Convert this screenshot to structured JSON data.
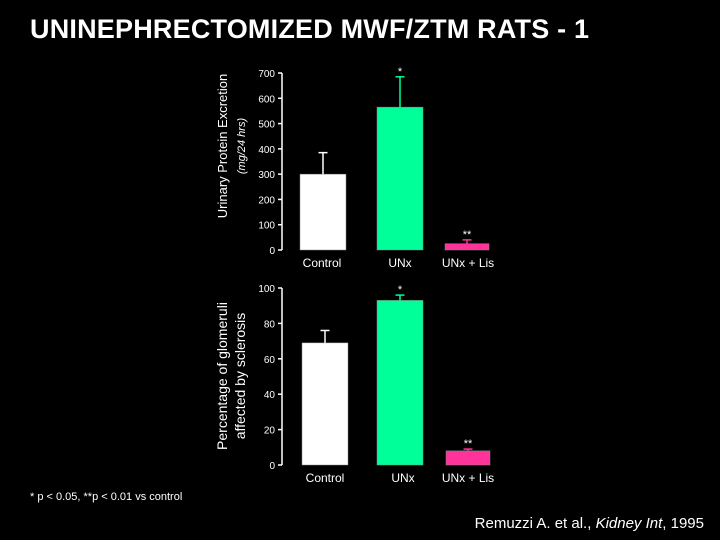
{
  "title": "UNINEPHRECTOMIZED MWF/ZTM RATS - 1",
  "footnote": "* p < 0.05, **p < 0.01 vs control",
  "citation": {
    "authors": "Remuzzi A. et al., ",
    "journal": "Kidney Int",
    "year": ", 1995"
  },
  "colors": {
    "background": "#000000",
    "control": "#ffffff",
    "unx": "#00ff99",
    "unx_lis": "#ff3399",
    "axis": "#ffffff"
  },
  "chart_data": [
    {
      "type": "bar",
      "title": "",
      "ylabel": "Urinary Protein Excretion",
      "ylabel_units": "(mg/24 hrs)",
      "xlabel": "",
      "ylim": [
        0,
        700
      ],
      "yticks": [
        0,
        100,
        200,
        300,
        400,
        500,
        600,
        700
      ],
      "categories": [
        "Control",
        "UNx",
        "UNx + Lis"
      ],
      "values": [
        300,
        565,
        25
      ],
      "errors": [
        85,
        120,
        15
      ],
      "significance": [
        "",
        "*",
        "**"
      ],
      "grid": false
    },
    {
      "type": "bar",
      "title": "",
      "ylabel": "Percentage of glomeruli",
      "ylabel_line2": "affected by sclerosis",
      "xlabel": "",
      "ylim": [
        0,
        100
      ],
      "yticks": [
        0,
        20,
        40,
        60,
        80,
        100
      ],
      "categories": [
        "Control",
        "UNx",
        "UNx + Lis"
      ],
      "values": [
        69,
        93,
        8
      ],
      "errors": [
        7,
        3,
        1
      ],
      "significance": [
        "",
        "*",
        "**"
      ],
      "grid": false
    }
  ]
}
